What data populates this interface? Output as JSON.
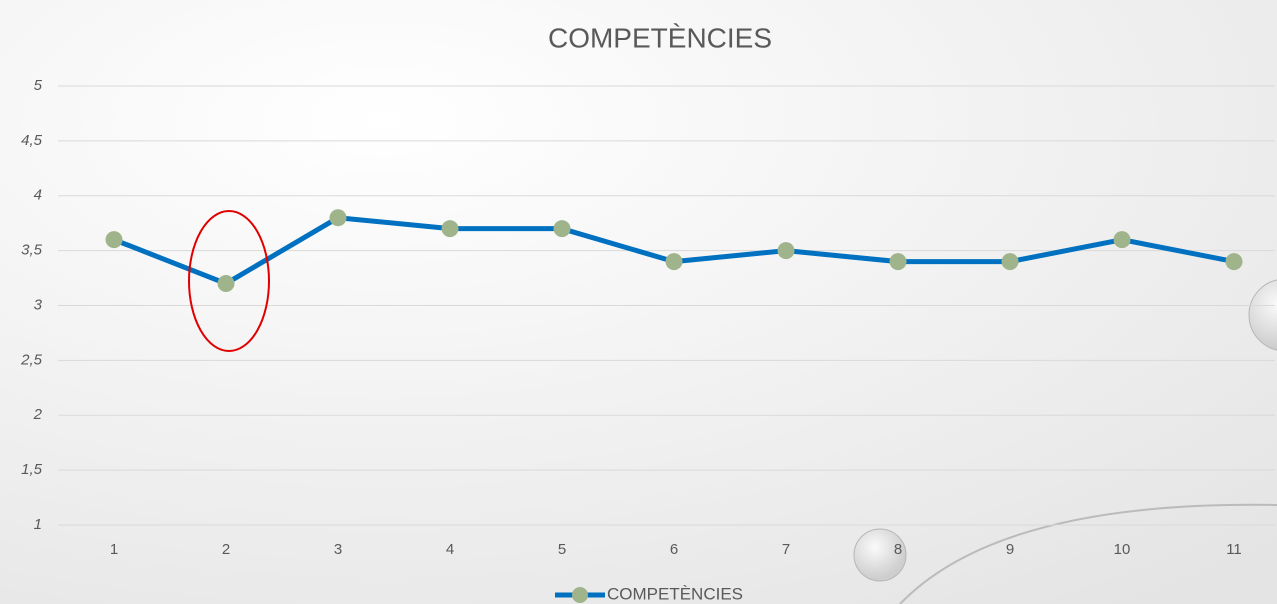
{
  "chart_data": {
    "type": "line",
    "title": "COMPETÈNCIES",
    "categories": [
      "1",
      "2",
      "3",
      "4",
      "5",
      "6",
      "7",
      "8",
      "9",
      "10",
      "11"
    ],
    "series": [
      {
        "name": "COMPETÈNCIES",
        "color": "#0070c0",
        "marker_color": "#9fb48b",
        "values": [
          3.6,
          3.2,
          3.8,
          3.7,
          3.7,
          3.4,
          3.5,
          3.4,
          3.4,
          3.6,
          3.4
        ]
      }
    ],
    "ylim": [
      1,
      5
    ],
    "yticks": [
      1,
      {
        "value": 1.5,
        "label": "1,5"
      },
      2,
      {
        "value": 2.5,
        "label": "2,5"
      },
      3,
      {
        "value": 3.5,
        "label": "3,5"
      },
      4,
      {
        "value": 4.5,
        "label": "4,5"
      },
      5
    ],
    "grid": true,
    "legend": "bottom"
  }
}
